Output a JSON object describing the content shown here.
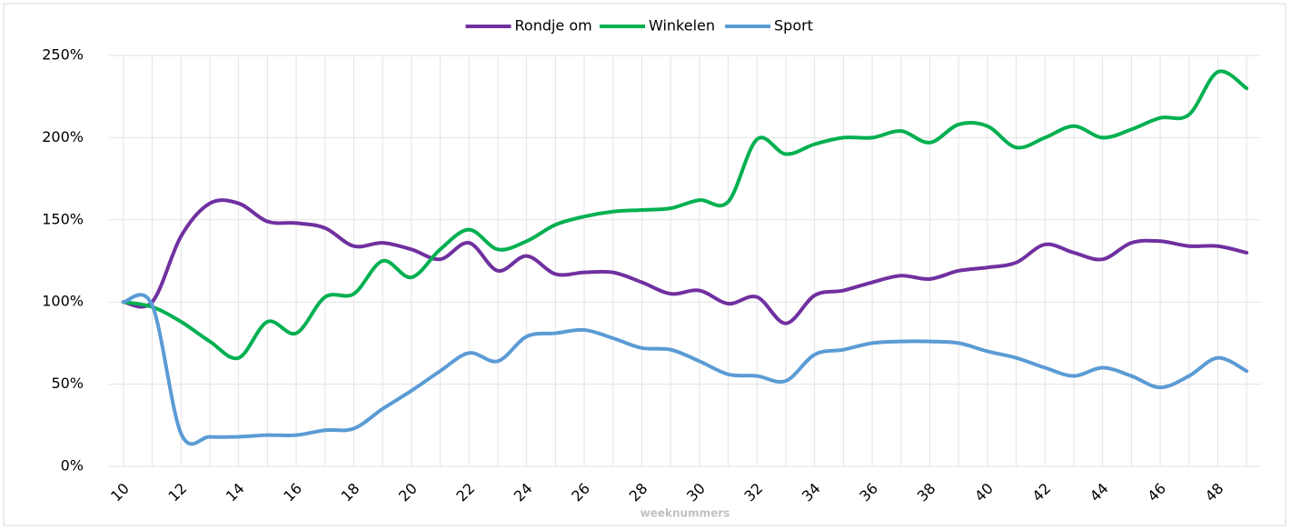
{
  "chart_data": {
    "type": "line",
    "x_label": "weeknummers",
    "categories": [
      "10",
      null,
      "12",
      null,
      "14",
      null,
      "16",
      null,
      "18",
      null,
      "20",
      null,
      "22",
      null,
      "24",
      null,
      "26",
      null,
      "28",
      null,
      "30",
      null,
      "32",
      null,
      "34",
      null,
      "36",
      null,
      "38",
      null,
      "40",
      null,
      "42",
      null,
      "44",
      null,
      "46",
      null,
      "48",
      null
    ],
    "series": [
      {
        "name": "Rondje om",
        "color": "#7030a0",
        "values": [
          100,
          100,
          140,
          160,
          160,
          149,
          148,
          145,
          134,
          136,
          132,
          126,
          136,
          119,
          128,
          117,
          118,
          118,
          112,
          105,
          107,
          99,
          103,
          87,
          104,
          107,
          112,
          116,
          114,
          119,
          121,
          124,
          135,
          130,
          126,
          136,
          137,
          134,
          134,
          130
        ]
      },
      {
        "name": "Winkelen",
        "color": "#00b050",
        "values": [
          100,
          97,
          88,
          76,
          66,
          88,
          81,
          103,
          105,
          125,
          115,
          132,
          144,
          132,
          137,
          147,
          152,
          155,
          156,
          157,
          162,
          161,
          199,
          190,
          196,
          200,
          200,
          204,
          197,
          208,
          207,
          194,
          200,
          207,
          200,
          205,
          212,
          214,
          240,
          230
        ]
      },
      {
        "name": "Sport",
        "color": "#5b9bd5",
        "values": [
          100,
          98,
          20,
          18,
          18,
          19,
          19,
          22,
          23,
          35,
          46,
          58,
          69,
          64,
          79,
          81,
          83,
          78,
          72,
          71,
          64,
          56,
          55,
          52,
          68,
          71,
          75,
          76,
          76,
          75,
          70,
          66,
          60,
          55,
          60,
          55,
          48,
          55,
          66,
          58
        ]
      }
    ],
    "ylim": [
      0,
      250
    ],
    "yticks": [
      {
        "value": 0,
        "label": "0%"
      },
      {
        "value": 50,
        "label": "50%"
      },
      {
        "value": 100,
        "label": "100%"
      },
      {
        "value": 150,
        "label": "150%"
      },
      {
        "value": 200,
        "label": "200%"
      },
      {
        "value": 250,
        "label": "250%"
      }
    ],
    "grid": true,
    "legend": "top"
  }
}
